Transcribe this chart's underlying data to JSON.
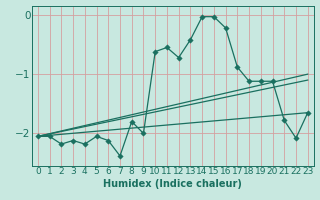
{
  "xlabel": "Humidex (Indice chaleur)",
  "bg_color": "#c8e8e0",
  "grid_color": "#d4a0a0",
  "line_color": "#1a7060",
  "tick_color": "#1a7060",
  "xlim": [
    -0.5,
    23.5
  ],
  "ylim": [
    -2.55,
    0.15
  ],
  "yticks": [
    0,
    -1,
    -2
  ],
  "xticks": [
    0,
    1,
    2,
    3,
    4,
    5,
    6,
    7,
    8,
    9,
    10,
    11,
    12,
    13,
    14,
    15,
    16,
    17,
    18,
    19,
    20,
    21,
    22,
    23
  ],
  "series1_x": [
    0,
    1,
    2,
    3,
    4,
    5,
    6,
    7,
    8,
    9,
    10,
    11,
    12,
    13,
    14,
    15,
    16,
    17,
    18,
    19,
    20,
    21,
    22,
    23
  ],
  "series1_y": [
    -2.05,
    -2.05,
    -2.18,
    -2.12,
    -2.18,
    -2.05,
    -2.12,
    -2.38,
    -1.8,
    -2.0,
    -0.62,
    -0.55,
    -0.72,
    -0.42,
    -0.03,
    -0.03,
    -0.22,
    -0.88,
    -1.12,
    -1.12,
    -1.12,
    -1.78,
    -2.08,
    -1.65
  ],
  "series2_x": [
    0,
    23
  ],
  "series2_y": [
    -2.05,
    -1.0
  ],
  "series3_x": [
    0,
    23
  ],
  "series3_y": [
    -2.05,
    -1.1
  ],
  "series4_x": [
    0,
    23
  ],
  "series4_y": [
    -2.05,
    -1.65
  ]
}
